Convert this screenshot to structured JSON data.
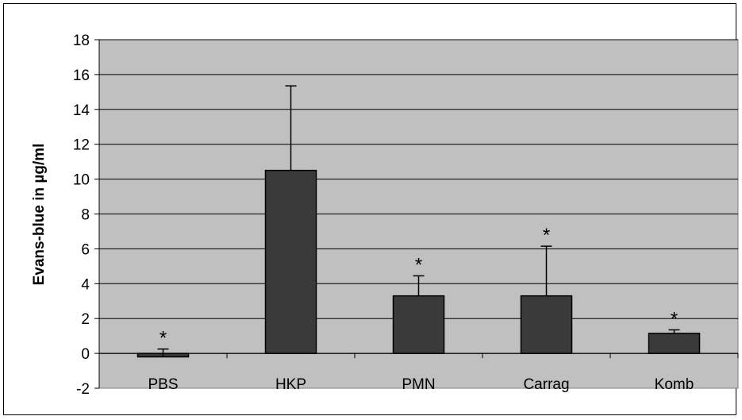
{
  "chart_data": {
    "type": "bar",
    "title": "",
    "xlabel": "",
    "ylabel": "Evans-blue in µg/ml",
    "ylim": [
      -2,
      18
    ],
    "yticks": [
      -2,
      0,
      2,
      4,
      6,
      8,
      10,
      12,
      14,
      16,
      18
    ],
    "grid": true,
    "legend": "none",
    "categories": [
      "PBS",
      "HKP",
      "PMN",
      "Carrag",
      "Komb"
    ],
    "values": [
      -0.2,
      10.5,
      3.3,
      3.3,
      1.15
    ],
    "error_upper": [
      0.25,
      15.35,
      4.45,
      6.15,
      1.35
    ],
    "significance": [
      "*",
      "",
      "*",
      "*",
      "*"
    ],
    "colors": {
      "bar": "#3a3a3a",
      "plot_background": "#c0c0c0",
      "grid": "#000000"
    }
  }
}
